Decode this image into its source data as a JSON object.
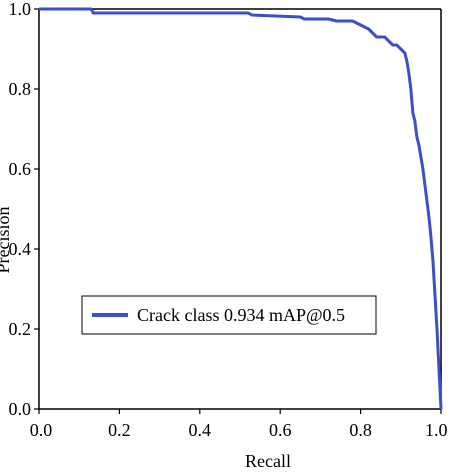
{
  "chart_data": {
    "type": "line",
    "xlabel": "Recall",
    "ylabel": "Precision",
    "xlim": [
      0.0,
      1.0
    ],
    "ylim": [
      0.0,
      1.0
    ],
    "x_ticks": [
      "0.0",
      "0.2",
      "0.4",
      "0.6",
      "0.8",
      "1.0"
    ],
    "y_ticks": [
      "0.0",
      "0.2",
      "0.4",
      "0.6",
      "0.8",
      "1.0"
    ],
    "grid": false,
    "legend_position": "center-left",
    "series": [
      {
        "name": "Crack class 0.934 mAP@0.5",
        "color": "#3a4fc8",
        "x": [
          0.0,
          0.13,
          0.135,
          0.3,
          0.52,
          0.53,
          0.65,
          0.66,
          0.72,
          0.74,
          0.78,
          0.8,
          0.82,
          0.83,
          0.84,
          0.86,
          0.87,
          0.88,
          0.89,
          0.9,
          0.91,
          0.915,
          0.92,
          0.925,
          0.93,
          0.935,
          0.94,
          0.945,
          0.95,
          0.955,
          0.96,
          0.965,
          0.97,
          0.975,
          0.98,
          0.99,
          1.0
        ],
        "y": [
          1.0,
          1.0,
          0.99,
          0.99,
          0.99,
          0.985,
          0.98,
          0.975,
          0.975,
          0.97,
          0.97,
          0.96,
          0.95,
          0.94,
          0.93,
          0.93,
          0.92,
          0.91,
          0.91,
          0.9,
          0.89,
          0.87,
          0.84,
          0.8,
          0.74,
          0.72,
          0.68,
          0.66,
          0.63,
          0.6,
          0.56,
          0.52,
          0.48,
          0.43,
          0.37,
          0.2,
          0.0
        ]
      }
    ]
  }
}
